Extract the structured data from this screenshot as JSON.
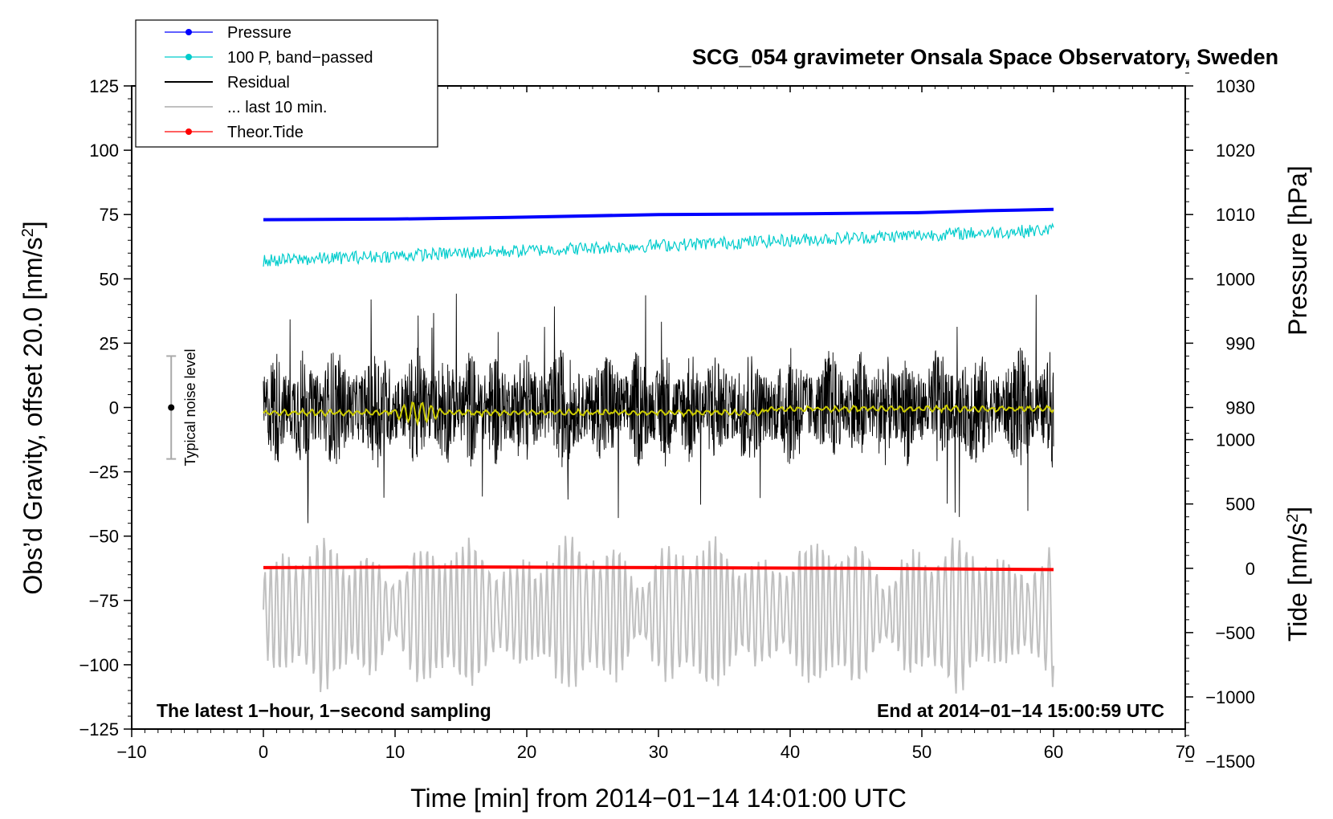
{
  "chart_data": {
    "type": "line",
    "title": "SCG_054 gravimeter Onsala Space Observatory, Sweden",
    "xlabel": "Time [min] from 2014−01−14 14:01:00 UTC",
    "ylabel_left": "Obs’d Gravity, offset 20.0 [nm/s",
    "ylabel_left_sup": "2",
    "ylabel_left_end": "]",
    "ylabel_right_pressure": "Pressure [hPa]",
    "ylabel_right_tide": "Tide [nm/s",
    "ylabel_right_tide_sup": "2",
    "ylabel_right_tide_end": "]",
    "xlim": [
      -10,
      70
    ],
    "ylim_left": [
      -125,
      125
    ],
    "x_ticks": [
      "−10",
      "0",
      "10",
      "20",
      "30",
      "40",
      "50",
      "60",
      "70"
    ],
    "x_tick_values": [
      -10,
      0,
      10,
      20,
      30,
      40,
      50,
      60,
      70
    ],
    "y_left_ticks": [
      "125",
      "100",
      "75",
      "50",
      "25",
      "0",
      "−25",
      "−50",
      "−75",
      "−100",
      "−125"
    ],
    "y_left_tick_values": [
      125,
      100,
      75,
      50,
      25,
      0,
      -25,
      -50,
      -75,
      -100,
      -125
    ],
    "pressure_axis": {
      "ticks": [
        "1030",
        "1020",
        "1010",
        "1000",
        "990",
        "980"
      ],
      "tick_values": [
        1030,
        1020,
        1010,
        1000,
        990,
        980
      ],
      "mapping_left_value_at_1010": 75,
      "left_units_per_hpa": 2.5
    },
    "tide_axis": {
      "ticks": [
        "1000",
        "500",
        "0",
        "−500",
        "−1000",
        "−1500"
      ],
      "tick_values": [
        1000,
        500,
        0,
        -500,
        -1000,
        -1500
      ],
      "mapping_left_value_at_0": -62.5,
      "left_units_per_nms2": 0.05
    },
    "legend": [
      {
        "label": "Pressure",
        "color": "#0000ff",
        "marker": true
      },
      {
        "label": "100 P, band−passed",
        "color": "#00cccc",
        "marker": true
      },
      {
        "label": "Residual",
        "color": "#000000",
        "marker": false
      },
      {
        "label": "... last 10 min.",
        "color": "#c0c0c0",
        "marker": false
      },
      {
        "label": "Theor.Tide",
        "color": "#ff0000",
        "marker": true
      }
    ],
    "series": [
      {
        "name": "Pressure",
        "color": "#0000ff",
        "x_range": [
          0,
          60
        ],
        "values_hpa": [
          1009.2,
          1009.3,
          1009.6,
          1010.0,
          1010.1,
          1010.3,
          1010.6,
          1010.8
        ],
        "sample_x": [
          0,
          10,
          20,
          30,
          40,
          50,
          55,
          60
        ]
      },
      {
        "name": "100 P, band−passed",
        "color": "#00cccc",
        "x_range": [
          0,
          60
        ],
        "trend_left": [
          57,
          69
        ],
        "noise_amplitude": 2.5
      },
      {
        "name": "Residual",
        "color": "#000000",
        "x_range": [
          0,
          60
        ],
        "typical_amplitude": 18,
        "max_amplitude": 45
      },
      {
        "name": "Residual low-pass",
        "color": "#cccc00",
        "x_range": [
          0,
          60
        ],
        "level": -2
      },
      {
        "name": "... last 10 min.",
        "color": "#c0c0c0",
        "x_range": [
          0,
          60
        ],
        "center_left": -80,
        "amplitude": 25
      },
      {
        "name": "Theor.Tide",
        "color": "#ff0000",
        "x_range": [
          0,
          60
        ],
        "values_nms2": [
          5,
          8,
          10,
          8,
          5,
          2,
          0,
          -5,
          -10
        ]
      }
    ],
    "noise_level": {
      "x": -7,
      "center": 0,
      "half_range": 20,
      "label": "Typical noise level"
    },
    "annotation_left": "The latest 1−hour, 1−second sampling",
    "annotation_right": "End at 2014−01−14 15:00:59 UTC"
  }
}
